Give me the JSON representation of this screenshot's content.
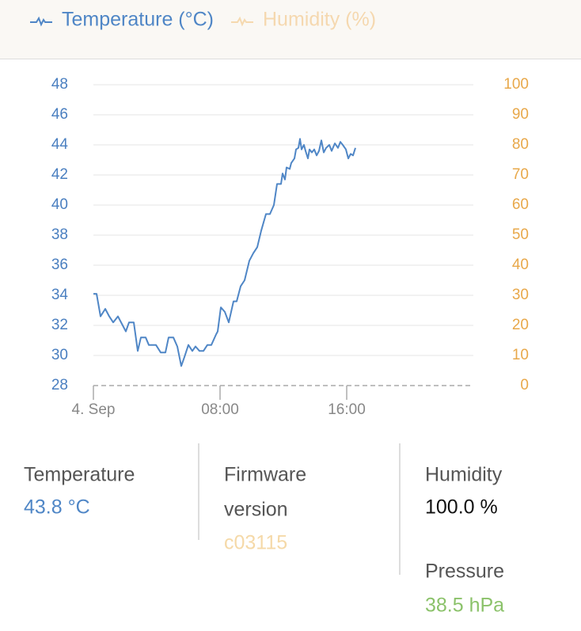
{
  "chart_data": {
    "type": "line",
    "x": [
      0,
      0.2,
      0.45,
      0.75,
      1.0,
      1.25,
      1.55,
      1.8,
      2.05,
      2.25,
      2.55,
      2.8,
      3.0,
      3.3,
      3.5,
      3.95,
      4.25,
      4.55,
      4.75,
      5.05,
      5.3,
      5.55,
      5.75,
      6.0,
      6.25,
      6.45,
      6.7,
      6.95,
      7.2,
      7.45,
      7.75,
      7.85,
      8.05,
      8.3,
      8.55,
      8.85,
      9.05,
      9.3,
      9.55,
      9.85,
      10.1,
      10.35,
      10.6,
      10.9,
      11.15,
      11.4,
      11.6,
      11.85,
      11.95,
      12.1,
      12.2,
      12.4,
      12.5,
      12.7,
      12.8,
      12.95,
      13.05,
      13.15,
      13.3,
      13.4,
      13.55,
      13.65,
      13.8,
      13.95,
      14.1,
      14.25,
      14.4,
      14.55,
      14.7,
      14.9,
      15.05,
      15.25,
      15.45,
      15.6,
      15.75,
      15.95,
      16.1,
      16.25,
      16.4,
      16.55
    ],
    "series": [
      {
        "name": "Temperature (°C)",
        "color": "#4f86c6",
        "axis": "y",
        "values": [
          34.1,
          34.1,
          32.6,
          33.1,
          32.6,
          32.2,
          32.6,
          32.1,
          31.6,
          32.2,
          32.2,
          30.3,
          31.2,
          31.2,
          30.7,
          30.7,
          30.2,
          30.2,
          31.2,
          31.2,
          30.6,
          29.3,
          29.9,
          30.7,
          30.3,
          30.6,
          30.3,
          30.3,
          30.7,
          30.7,
          31.4,
          31.6,
          33.2,
          32.9,
          32.2,
          33.6,
          33.6,
          34.6,
          35.0,
          36.3,
          36.8,
          37.2,
          38.3,
          39.4,
          39.4,
          40.0,
          41.4,
          41.4,
          42.1,
          41.7,
          42.5,
          42.4,
          42.8,
          43.1,
          43.7,
          43.8,
          44.4,
          43.7,
          44.0,
          43.6,
          43.1,
          43.7,
          43.5,
          43.7,
          43.3,
          43.6,
          44.3,
          43.5,
          43.8,
          44.0,
          43.6,
          44.1,
          43.8,
          44.2,
          44.0,
          43.7,
          43.1,
          43.4,
          43.3,
          43.8
        ]
      },
      {
        "name": "Humidity (%)",
        "color": "#f0b35c",
        "axis": "y2",
        "visible": false
      }
    ],
    "xlim": [
      0,
      24
    ],
    "xticks": [
      {
        "value": 0,
        "label": "4. Sep"
      },
      {
        "value": 8,
        "label": "08:00"
      },
      {
        "value": 16,
        "label": "16:00"
      }
    ],
    "ylim": [
      28,
      48
    ],
    "yticks": [
      28,
      30,
      32,
      34,
      36,
      38,
      40,
      42,
      44,
      46,
      48
    ],
    "ycolor": "#4a7fc0",
    "y2lim": [
      0,
      100
    ],
    "y2ticks": [
      0,
      10,
      20,
      30,
      40,
      50,
      60,
      70,
      80,
      90,
      100
    ],
    "y2color": "#e8a84a",
    "grid": true
  },
  "info": {
    "temperature": {
      "label": "Temperature",
      "value": "43.8 °C"
    },
    "firmware": {
      "label_line1": "Firmware",
      "label_line2": "version",
      "value": "c03115"
    },
    "humidity": {
      "label": "Humidity",
      "value": "100.0 %"
    },
    "pressure": {
      "label": "Pressure",
      "value": "38.5 hPa"
    }
  }
}
